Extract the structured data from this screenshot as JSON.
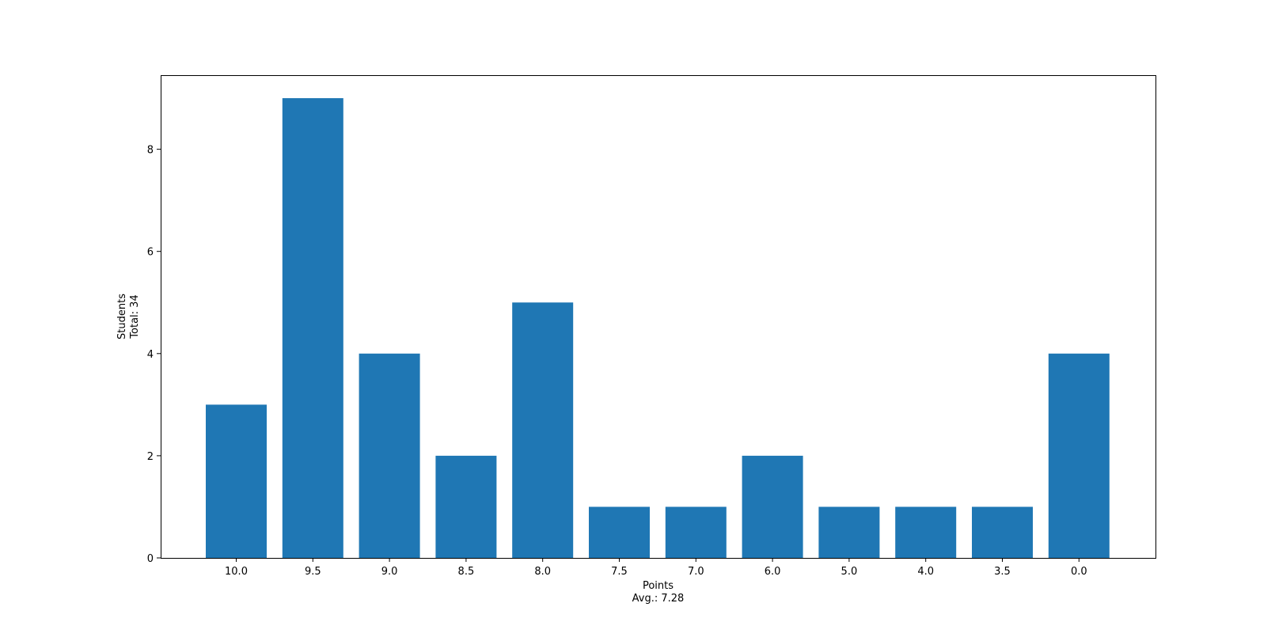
{
  "chart_data": {
    "type": "bar",
    "categories": [
      "10.0",
      "9.5",
      "9.0",
      "8.5",
      "8.0",
      "7.5",
      "7.0",
      "6.0",
      "5.0",
      "4.0",
      "3.5",
      "0.0"
    ],
    "values": [
      3,
      9,
      4,
      2,
      5,
      1,
      1,
      2,
      1,
      1,
      1,
      4
    ],
    "xlabel": [
      "Points",
      "Avg.: 7.28"
    ],
    "ylabel": [
      "Students",
      "Total: 34"
    ],
    "yticks": [
      0,
      2,
      4,
      6,
      8
    ],
    "ylim": [
      0,
      9.45
    ],
    "bar_color": "#1f77b4",
    "grid": false,
    "legend": "none"
  }
}
